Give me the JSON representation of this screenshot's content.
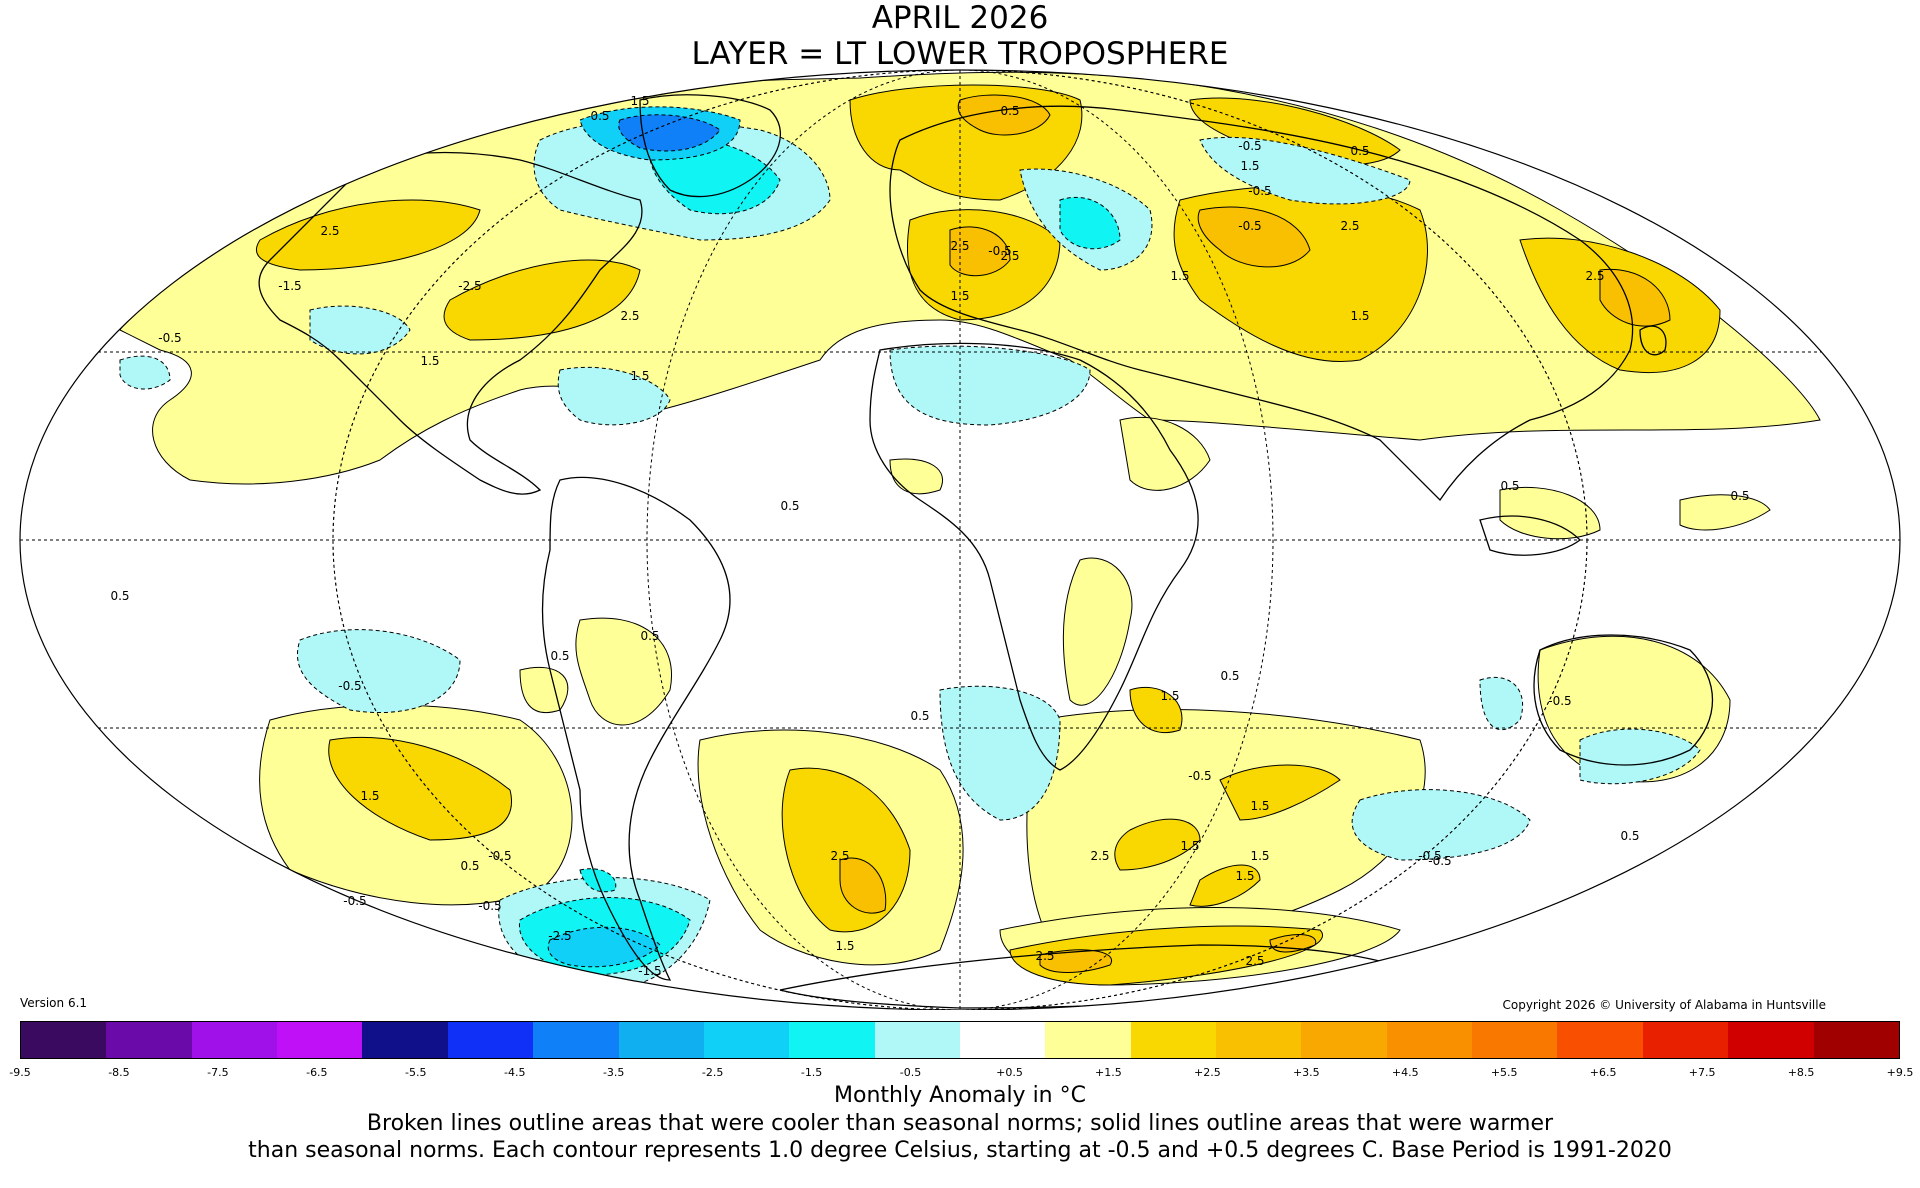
{
  "header": {
    "title": "APRIL 2026",
    "layer": "LAYER = LT LOWER TROPOSPHERE"
  },
  "footer": {
    "version": "Version 6.1",
    "copyright": "Copyright 2026 © University of Alabama in Huntsville",
    "unit_label": "Monthly Anomaly in °C",
    "caption_line1": "Broken lines outline areas that were cooler than seasonal norms; solid lines outline areas that were warmer",
    "caption_line2": "than seasonal norms. Each contour represents 1.0 degree Celsius, starting at -0.5 and +0.5 degrees C. Base Period is 1991-2020"
  },
  "colorbar": {
    "colors": [
      "#3a0a60",
      "#6a0aa8",
      "#a010e8",
      "#c010f8",
      "#10108a",
      "#1030f8",
      "#1080f8",
      "#10b0f0",
      "#10d0f8",
      "#10f4f4",
      "#b0f8f8",
      "#ffffff",
      "#ffff98",
      "#f8d800",
      "#f8c000",
      "#f8a800",
      "#f89000",
      "#f87800",
      "#f85000",
      "#e82000",
      "#d00000",
      "#a00000"
    ],
    "tick_labels": [
      "-9.5",
      "-8.5",
      "-7.5",
      "-6.5",
      "-5.5",
      "-4.5",
      "-3.5",
      "-2.5",
      "-1.5",
      "-0.5",
      "+0.5",
      "+1.5",
      "+2.5",
      "+3.5",
      "+4.5",
      "+5.5",
      "+6.5",
      "+7.5",
      "+8.5",
      "+9.5"
    ]
  },
  "map": {
    "projection": "mollweide",
    "contour_labels": [
      "0.5",
      "1.5",
      "2.5",
      "-0.5",
      "-1.5",
      "-2.5",
      "2.5",
      "1.5",
      "1.5",
      "0.5",
      "-0.5",
      "1.5",
      "0.5",
      "-0.5",
      "1.5",
      "2.5",
      "-0.5",
      "2.5",
      "1.5",
      "-0.5",
      "2.5",
      "2.5",
      "1.5",
      "0.5",
      "0.5",
      "0.5",
      "0.5",
      "0.5",
      "-0.5",
      "0.5",
      "0.5",
      "0.5",
      "-0.5",
      "1.5",
      "1.5",
      "-0.5",
      "2.5",
      "1.5",
      "1.5",
      "1.5",
      "1.5",
      "-0.5",
      "0.5",
      "-0.5",
      "-0.5",
      "2.5",
      "2.5",
      "2.5",
      "1.5",
      "0.5",
      "-0.5",
      "-0.5",
      "-2.5",
      "-1.5"
    ],
    "anomaly_colors": {
      "warm1": "#ffff98",
      "warm2": "#f8d800",
      "warm3": "#f8c000",
      "cool1": "#b0f8f8",
      "cool2": "#10f4f4",
      "cool3": "#10d0f8",
      "cool4": "#1080f8"
    }
  }
}
